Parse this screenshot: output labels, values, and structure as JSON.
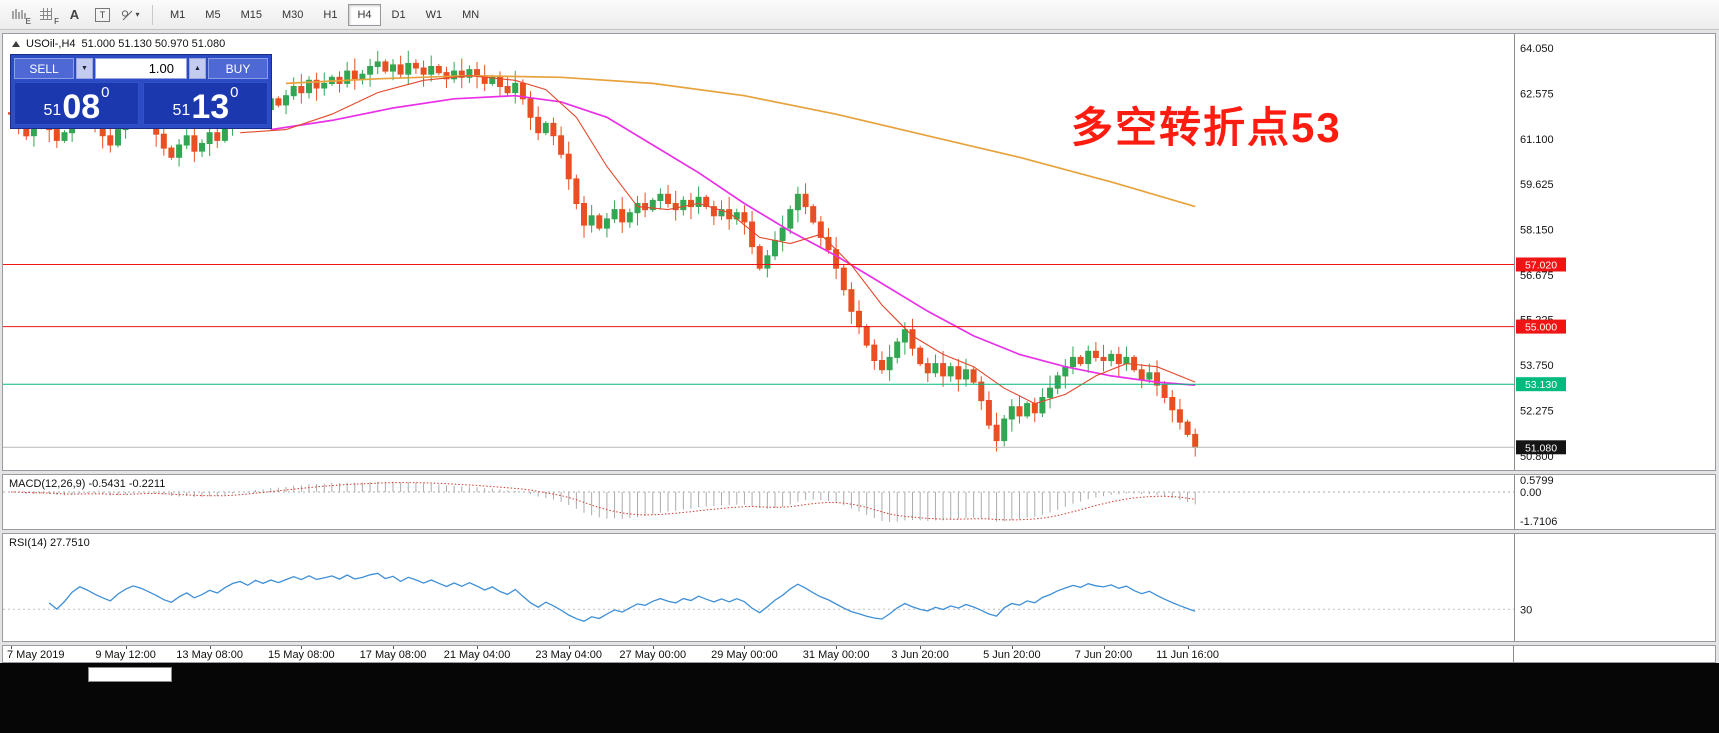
{
  "toolbar": {
    "icons": [
      {
        "name": "chart-type-icon",
        "sub": "E"
      },
      {
        "name": "grid-icon",
        "sub": "F"
      },
      {
        "name": "annotation-a-icon",
        "label": "A"
      },
      {
        "name": "text-label-icon",
        "label": "T"
      },
      {
        "name": "shapes-dropdown-icon",
        "caret": "▾"
      }
    ],
    "timeframes": [
      {
        "label": "M1",
        "active": false
      },
      {
        "label": "M5",
        "active": false
      },
      {
        "label": "M15",
        "active": false
      },
      {
        "label": "M30",
        "active": false
      },
      {
        "label": "H1",
        "active": false
      },
      {
        "label": "H4",
        "active": true
      },
      {
        "label": "D1",
        "active": false
      },
      {
        "label": "W1",
        "active": false
      },
      {
        "label": "MN",
        "active": false
      }
    ]
  },
  "chart": {
    "header": {
      "symbol": "USOil-,H4",
      "ohlc": "51.000 51.130 50.970 51.080"
    },
    "annotation": {
      "text": "多空转折点53",
      "color": "#fe1b10"
    },
    "trade_panel": {
      "sell_label": "SELL",
      "buy_label": "BUY",
      "volume": "1.00",
      "dropdown_glyph": "▼",
      "up_glyph": "▲",
      "sell_price": {
        "small": "51",
        "big": "08",
        "sup": "0"
      },
      "buy_price": {
        "small": "51",
        "big": "13",
        "sup": "0"
      }
    }
  },
  "macd": {
    "title": "MACD(12,26,9) -0.5431 -0.2211",
    "axis": [
      "0.5799",
      "0.00",
      "-1.7106"
    ]
  },
  "rsi": {
    "title": "RSI(14) 27.7510",
    "axis": [
      "30"
    ]
  },
  "time_axis": [
    "7 May 2019",
    "9 May 12:00",
    "13 May 08:00",
    "15 May 08:00",
    "17 May 08:00",
    "21 May 04:00",
    "23 May 04:00",
    "27 May 00:00",
    "29 May 00:00",
    "31 May 00:00",
    "3 Jun 20:00",
    "5 Jun 20:00",
    "7 Jun 20:00",
    "11 Jun 16:00"
  ],
  "chart_data": {
    "type": "candlestick",
    "symbol": "USOil-,H4",
    "timeframe": "H4",
    "ohlc_current": {
      "open": 51.0,
      "high": 51.13,
      "low": 50.97,
      "close": 51.08
    },
    "first_open": 61.95,
    "closes": [
      61.9,
      61.55,
      61.2,
      61.6,
      61.85,
      61.4,
      61.05,
      61.3,
      61.7,
      62.0,
      61.8,
      61.5,
      61.2,
      60.9,
      61.4,
      61.8,
      62.1,
      61.9,
      61.6,
      61.25,
      60.8,
      60.5,
      60.9,
      61.2,
      60.7,
      60.95,
      61.3,
      61.05,
      61.5,
      61.9,
      62.1,
      61.8,
      62.3,
      62.05,
      62.4,
      62.2,
      62.5,
      62.8,
      62.6,
      63.0,
      62.75,
      62.9,
      63.1,
      62.9,
      63.3,
      63.05,
      63.2,
      63.45,
      63.6,
      63.3,
      63.5,
      63.2,
      63.55,
      63.4,
      63.2,
      63.45,
      63.25,
      63.05,
      63.3,
      63.1,
      63.35,
      63.15,
      62.9,
      63.1,
      62.8,
      62.6,
      62.9,
      62.4,
      61.8,
      61.3,
      61.6,
      61.2,
      60.6,
      59.8,
      59.0,
      58.3,
      58.6,
      58.2,
      58.5,
      58.8,
      58.4,
      58.7,
      59.0,
      58.8,
      59.1,
      59.3,
      59.0,
      58.8,
      59.1,
      58.9,
      59.2,
      58.9,
      58.6,
      58.8,
      58.5,
      58.7,
      58.4,
      57.6,
      56.9,
      57.3,
      57.8,
      58.2,
      58.8,
      59.3,
      58.9,
      58.4,
      57.9,
      57.5,
      56.9,
      56.2,
      55.5,
      55.0,
      54.4,
      53.9,
      53.6,
      54.0,
      54.5,
      54.9,
      54.3,
      53.8,
      53.5,
      53.8,
      53.4,
      53.7,
      53.3,
      53.6,
      53.2,
      52.6,
      51.8,
      51.3,
      52.0,
      52.4,
      52.1,
      52.5,
      52.2,
      52.7,
      53.0,
      53.4,
      53.7,
      54.0,
      53.8,
      54.2,
      54.0,
      53.9,
      54.1,
      53.8,
      54.0,
      53.6,
      53.3,
      53.5,
      53.1,
      52.7,
      52.3,
      51.9,
      51.5,
      51.08
    ],
    "x_label_indices": [
      0,
      15,
      26,
      38,
      50,
      61,
      73,
      84,
      96,
      108,
      119,
      131,
      143,
      154
    ],
    "price_axis_values": [
      64.05,
      62.575,
      61.1,
      59.625,
      58.15,
      56.675,
      55.225,
      53.75,
      52.275,
      50.8
    ],
    "ylim": [
      50.5,
      64.45
    ],
    "hlines": [
      {
        "price": 57.02,
        "color": "#f01414",
        "tag": "57.020",
        "tag_color": "#f01414"
      },
      {
        "price": 55.0,
        "color": "#f01414",
        "tag": "55.000",
        "tag_color": "#f01414"
      },
      {
        "price": 53.13,
        "color": "#00ba7e",
        "tag": "53.130",
        "tag_color": "#00ba7e"
      },
      {
        "price": 51.08,
        "color": "#b9b9b9",
        "tag": "51.080",
        "tag_color": "#141414"
      }
    ],
    "moving_averages": [
      {
        "name": "ma-slow",
        "color": "#e8a23c",
        "width": 1.7,
        "anchors": [
          [
            36,
            62.9
          ],
          [
            48,
            63.05
          ],
          [
            60,
            63.15
          ],
          [
            72,
            63.1
          ],
          [
            84,
            62.9
          ],
          [
            96,
            62.5
          ],
          [
            108,
            61.9
          ],
          [
            120,
            61.2
          ],
          [
            132,
            60.5
          ],
          [
            144,
            59.7
          ],
          [
            155,
            58.9
          ]
        ]
      },
      {
        "name": "ma-mid",
        "color": "#ea30e8",
        "width": 1.7,
        "anchors": [
          [
            34,
            61.4
          ],
          [
            42,
            61.7
          ],
          [
            50,
            62.1
          ],
          [
            58,
            62.4
          ],
          [
            66,
            62.5
          ],
          [
            72,
            62.3
          ],
          [
            78,
            61.8
          ],
          [
            84,
            60.9
          ],
          [
            90,
            60.0
          ],
          [
            96,
            59.0
          ],
          [
            102,
            58.1
          ],
          [
            108,
            57.3
          ],
          [
            114,
            56.4
          ],
          [
            120,
            55.5
          ],
          [
            126,
            54.7
          ],
          [
            132,
            54.1
          ],
          [
            138,
            53.7
          ],
          [
            144,
            53.4
          ],
          [
            150,
            53.2
          ],
          [
            155,
            53.1
          ]
        ]
      },
      {
        "name": "ma-fast",
        "color": "#e2492b",
        "width": 1.1,
        "anchors": [
          [
            30,
            61.3
          ],
          [
            36,
            61.4
          ],
          [
            42,
            61.9
          ],
          [
            48,
            62.6
          ],
          [
            54,
            63.0
          ],
          [
            60,
            63.15
          ],
          [
            66,
            63.0
          ],
          [
            70,
            62.7
          ],
          [
            74,
            61.8
          ],
          [
            78,
            60.2
          ],
          [
            82,
            58.9
          ],
          [
            86,
            58.8
          ],
          [
            90,
            59.0
          ],
          [
            94,
            58.7
          ],
          [
            98,
            57.9
          ],
          [
            102,
            57.7
          ],
          [
            106,
            58.0
          ],
          [
            110,
            57.0
          ],
          [
            114,
            55.7
          ],
          [
            118,
            54.7
          ],
          [
            122,
            54.1
          ],
          [
            126,
            53.7
          ],
          [
            130,
            53.0
          ],
          [
            134,
            52.5
          ],
          [
            138,
            52.8
          ],
          [
            142,
            53.4
          ],
          [
            146,
            53.8
          ],
          [
            150,
            53.7
          ],
          [
            155,
            53.2
          ]
        ]
      }
    ],
    "indicators": [
      {
        "type": "macd",
        "fast": 12,
        "slow": 26,
        "signal": 9,
        "display_values": [
          -0.5431,
          -0.2211
        ],
        "scale_top": 0.5799,
        "scale_bottom": -1.7106
      },
      {
        "type": "rsi",
        "period": 14,
        "display_value": 27.751,
        "levels": [
          30
        ]
      }
    ],
    "up_color": "#33a653",
    "down_color": "#e84f22"
  }
}
